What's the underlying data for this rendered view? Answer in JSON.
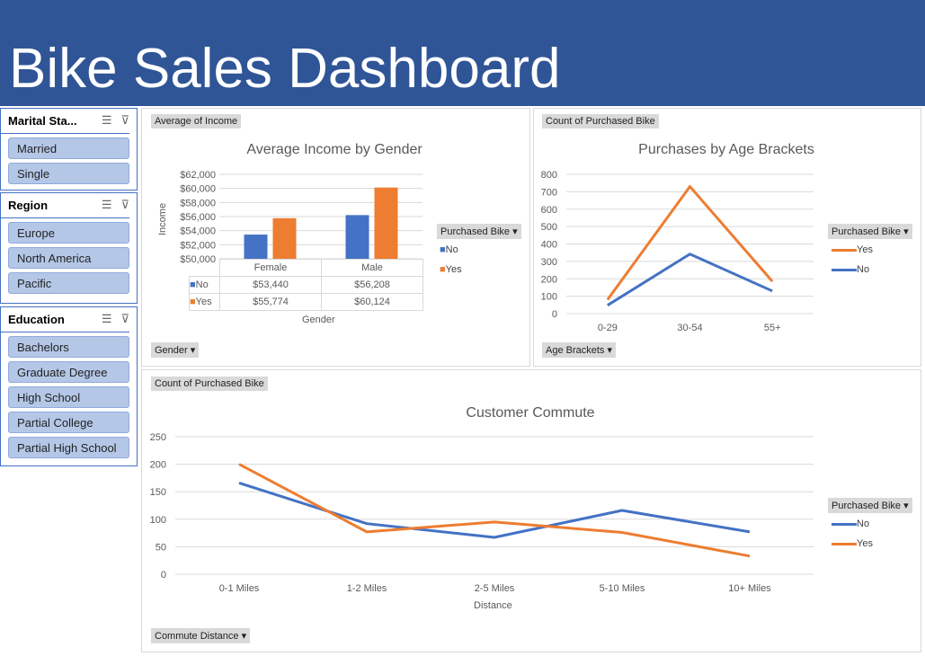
{
  "header": {
    "title": "Bike Sales Dashboard"
  },
  "slicers": [
    {
      "title": "Marital Sta...",
      "items": [
        "Married",
        "Single"
      ]
    },
    {
      "title": "Region",
      "items": [
        "Europe",
        "North America",
        "Pacific"
      ]
    },
    {
      "title": "Education",
      "items": [
        "Bachelors",
        "Graduate Degree",
        "High School",
        "Partial College",
        "Partial High School"
      ]
    }
  ],
  "colors": {
    "no": "#4472C4",
    "yes": "#ED7D31",
    "header": "#2F5597"
  },
  "chart_data": [
    {
      "type": "bar",
      "field_button": "Average of Income",
      "axis_button": "Gender",
      "legend_button": "Purchased Bike",
      "title": "Average Income by Gender",
      "xlabel": "Gender",
      "ylabel": "Income",
      "categories": [
        "Female",
        "Male"
      ],
      "ylim": [
        50000,
        62000
      ],
      "yticks": [
        "$50,000",
        "$52,000",
        "$54,000",
        "$56,000",
        "$58,000",
        "$60,000",
        "$62,000"
      ],
      "series": [
        {
          "name": "No",
          "values": [
            53440,
            56208
          ],
          "labels": [
            "$53,440",
            "$56,208"
          ]
        },
        {
          "name": "Yes",
          "values": [
            55774,
            60124
          ],
          "labels": [
            "$55,774",
            "$60,124"
          ]
        }
      ]
    },
    {
      "type": "line",
      "field_button": "Count of Purchased Bike",
      "axis_button": "Age Brackets",
      "legend_button": "Purchased Bike",
      "title": "Purchases by Age Brackets",
      "categories": [
        "0-29",
        "30-54",
        "55+"
      ],
      "ylim": [
        0,
        800
      ],
      "yticks": [
        "0",
        "100",
        "200",
        "300",
        "400",
        "500",
        "600",
        "700",
        "800"
      ],
      "series": [
        {
          "name": "Yes",
          "values": [
            80,
            730,
            185
          ]
        },
        {
          "name": "No",
          "values": [
            48,
            342,
            130
          ]
        }
      ]
    },
    {
      "type": "line",
      "field_button": "Count of Purchased Bike",
      "axis_button": "Commute Distance",
      "legend_button": "Purchased Bike",
      "title": "Customer Commute",
      "xlabel": "Distance",
      "categories": [
        "0-1 Miles",
        "1-2 Miles",
        "2-5 Miles",
        "5-10 Miles",
        "10+ Miles"
      ],
      "ylim": [
        0,
        250
      ],
      "yticks": [
        "0",
        "50",
        "100",
        "150",
        "200",
        "250"
      ],
      "series": [
        {
          "name": "No",
          "values": [
            166,
            92,
            67,
            116,
            77
          ]
        },
        {
          "name": "Yes",
          "values": [
            200,
            77,
            95,
            76,
            33
          ]
        }
      ]
    }
  ]
}
